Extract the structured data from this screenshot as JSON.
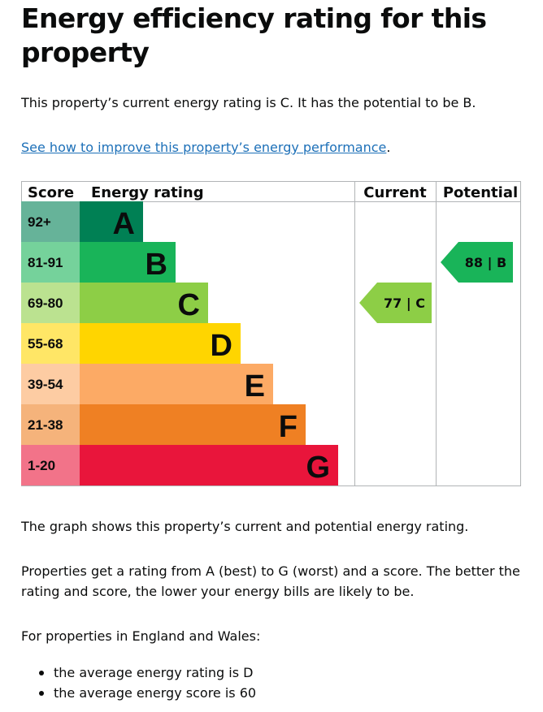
{
  "page": {
    "title": "Energy efficiency rating for this property",
    "summary": "This property’s current energy rating is C. It has the potential to be B.",
    "improve_link": "See how to improve this property’s energy performance",
    "link_suffix": ".",
    "graph_description": "The graph shows this property’s current and potential energy rating.",
    "explanation": "Properties get a rating from A (best) to G (worst) and a score. The better the rating and score, the lower your energy bills are likely to be.",
    "england_wales": "For properties in England and Wales:",
    "averages": [
      "the average energy rating is D",
      "the average energy score is 60"
    ]
  },
  "chart_data": {
    "type": "table",
    "headers": {
      "score": "Score",
      "rating": "Energy rating",
      "current": "Current",
      "potential": "Potential"
    },
    "bands": [
      {
        "band": "A",
        "score_range": "92+",
        "min": 92,
        "max": 100,
        "color": "#008054",
        "score_bg": "#66b399"
      },
      {
        "band": "B",
        "score_range": "81-91",
        "min": 81,
        "max": 91,
        "color": "#19b459",
        "score_bg": "#75d29b"
      },
      {
        "band": "C",
        "score_range": "69-80",
        "min": 69,
        "max": 80,
        "color": "#8dce46",
        "score_bg": "#bbe290"
      },
      {
        "band": "D",
        "score_range": "55-68",
        "min": 55,
        "max": 68,
        "color": "#ffd500",
        "score_bg": "#ffe666"
      },
      {
        "band": "E",
        "score_range": "39-54",
        "min": 39,
        "max": 54,
        "color": "#fcaa65",
        "score_bg": "#fdcca3"
      },
      {
        "band": "F",
        "score_range": "21-38",
        "min": 21,
        "max": 38,
        "color": "#ef8023",
        "score_bg": "#f5b37b"
      },
      {
        "band": "G",
        "score_range": "1-20",
        "min": 1,
        "max": 20,
        "color": "#e9153b",
        "score_bg": "#f27389"
      }
    ],
    "current": {
      "score": 77,
      "band": "C",
      "label": "77 | C"
    },
    "potential": {
      "score": 88,
      "band": "B",
      "label": "88 | B"
    }
  }
}
